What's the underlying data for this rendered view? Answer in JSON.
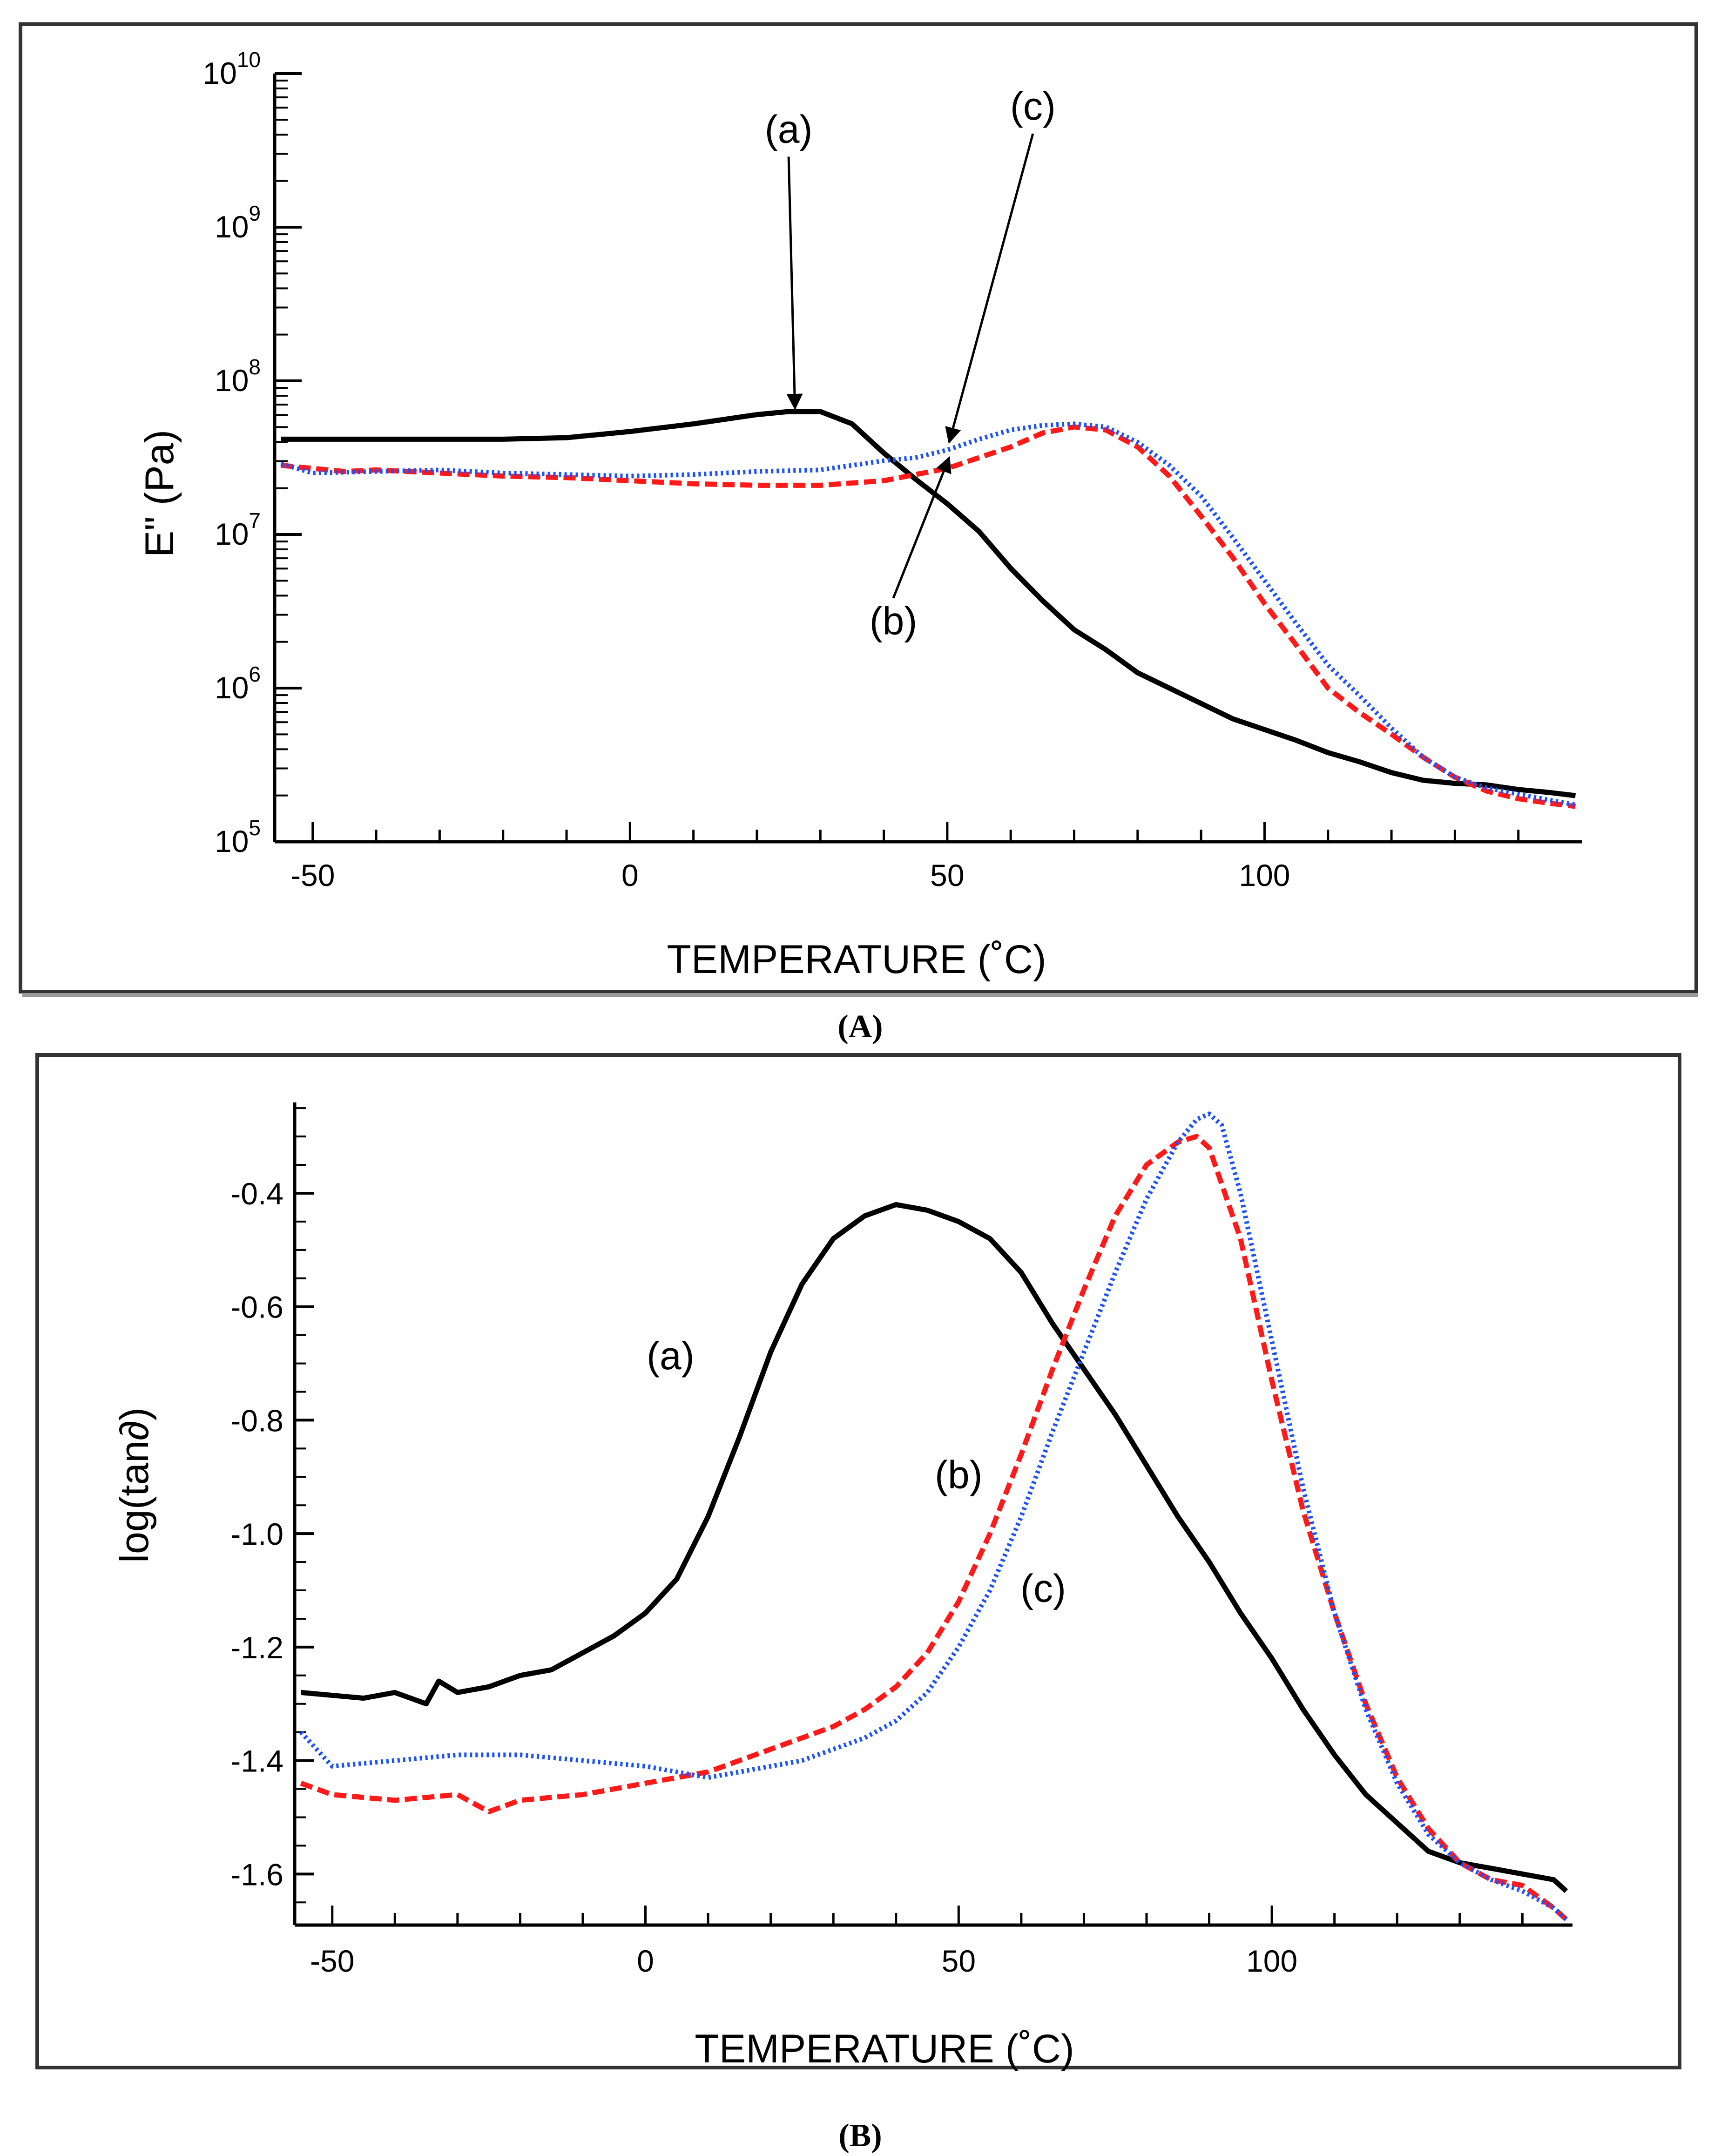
{
  "chart_data": [
    {
      "type": "line",
      "panel_label": "(A)",
      "xlabel": "TEMPERATURE (˚C)",
      "ylabel": "E\" (Pa)",
      "yscale": "log",
      "xlim": [
        -56,
        150
      ],
      "ylim_exp": [
        5,
        10
      ],
      "x_ticks": [
        "-50",
        "0",
        "50",
        "100"
      ],
      "y_ticks": [
        {
          "base": "10",
          "exp": "5",
          "value": 5
        },
        {
          "base": "10",
          "exp": "6",
          "value": 6
        },
        {
          "base": "10",
          "exp": "7",
          "value": 7
        },
        {
          "base": "10",
          "exp": "8",
          "value": 8
        },
        {
          "base": "10",
          "exp": "9",
          "value": 9
        },
        {
          "base": "10",
          "exp": "10",
          "value": 10
        }
      ],
      "series": [
        {
          "name": "(a)",
          "color": "#000000",
          "dash": "",
          "width": 11,
          "x": [
            -55,
            -40,
            -30,
            -20,
            -10,
            0,
            10,
            20,
            25,
            30,
            35,
            40,
            45,
            50,
            55,
            60,
            65,
            70,
            75,
            80,
            85,
            90,
            95,
            100,
            105,
            110,
            115,
            120,
            125,
            130,
            135,
            140,
            145,
            149
          ],
          "y": [
            7.62,
            7.62,
            7.62,
            7.62,
            7.63,
            7.67,
            7.72,
            7.78,
            7.8,
            7.8,
            7.72,
            7.53,
            7.36,
            7.2,
            7.02,
            6.78,
            6.57,
            6.38,
            6.25,
            6.1,
            6.0,
            5.9,
            5.8,
            5.73,
            5.66,
            5.58,
            5.52,
            5.45,
            5.4,
            5.38,
            5.37,
            5.34,
            5.32,
            5.3
          ]
        },
        {
          "name": "(b)",
          "color": "#ff1a1a",
          "dash": "26,12",
          "width": 11,
          "x": [
            -55,
            -45,
            -40,
            -30,
            -20,
            -10,
            0,
            10,
            20,
            30,
            40,
            50,
            55,
            60,
            65,
            70,
            75,
            80,
            85,
            90,
            95,
            100,
            105,
            110,
            115,
            120,
            125,
            130,
            135,
            140,
            145,
            149
          ],
          "y": [
            7.45,
            7.41,
            7.42,
            7.4,
            7.38,
            7.37,
            7.35,
            7.33,
            7.32,
            7.32,
            7.35,
            7.43,
            7.5,
            7.57,
            7.66,
            7.7,
            7.68,
            7.57,
            7.38,
            7.12,
            6.85,
            6.55,
            6.28,
            6.0,
            5.84,
            5.7,
            5.55,
            5.42,
            5.33,
            5.28,
            5.25,
            5.23
          ]
        },
        {
          "name": "(c)",
          "color": "#1a50ff",
          "dash": "5,7",
          "width": 10,
          "x": [
            -55,
            -50,
            -40,
            -30,
            -20,
            -10,
            0,
            10,
            20,
            30,
            40,
            45,
            50,
            55,
            60,
            65,
            70,
            75,
            80,
            85,
            90,
            95,
            100,
            105,
            110,
            115,
            120,
            125,
            130,
            135,
            140,
            145,
            149
          ],
          "y": [
            7.46,
            7.4,
            7.41,
            7.42,
            7.4,
            7.39,
            7.38,
            7.39,
            7.41,
            7.42,
            7.48,
            7.5,
            7.55,
            7.62,
            7.68,
            7.71,
            7.72,
            7.7,
            7.6,
            7.45,
            7.25,
            6.98,
            6.7,
            6.42,
            6.15,
            5.95,
            5.74,
            5.55,
            5.42,
            5.35,
            5.31,
            5.27,
            5.24
          ]
        }
      ],
      "annotations": [
        {
          "label": "(a)",
          "text_x": 25,
          "text_y": 9.55,
          "arrow_to": [
            26,
            7.82
          ],
          "align": "middle"
        },
        {
          "label": "(c)",
          "text_x": 63.5,
          "text_y": 9.7,
          "arrow_to": [
            50.3,
            7.6
          ],
          "align": "middle"
        },
        {
          "label": "(b)",
          "text_x": 41.5,
          "text_y": 6.35,
          "arrow_to": [
            50.3,
            7.5
          ],
          "align": "middle"
        }
      ]
    },
    {
      "type": "line",
      "panel_label": "(B)",
      "xlabel": "TEMPERATURE (˚C)",
      "ylabel": "log(tan∂)",
      "yscale": "linear",
      "xlim": [
        -56,
        148
      ],
      "ylim": [
        -1.69,
        -0.24
      ],
      "x_ticks": [
        "-50",
        "0",
        "50",
        "100"
      ],
      "y_ticks": [
        "-0.4",
        "-0.6",
        "-0.8",
        "-1.0",
        "-1.2",
        "-1.4",
        "-1.6"
      ],
      "y_tick_values": [
        -0.4,
        -0.6,
        -0.8,
        -1.0,
        -1.2,
        -1.4,
        -1.6
      ],
      "series": [
        {
          "name": "(a)",
          "color": "#000000",
          "dash": "",
          "width": 11,
          "x": [
            -55,
            -45,
            -40,
            -35,
            -33,
            -30,
            -25,
            -20,
            -15,
            -10,
            -5,
            0,
            5,
            10,
            15,
            20,
            25,
            30,
            35,
            40,
            45,
            50,
            55,
            60,
            65,
            70,
            75,
            80,
            85,
            90,
            95,
            100,
            105,
            110,
            115,
            120,
            125,
            130,
            135,
            140,
            145,
            147
          ],
          "y": [
            -1.28,
            -1.29,
            -1.28,
            -1.3,
            -1.26,
            -1.28,
            -1.27,
            -1.25,
            -1.24,
            -1.21,
            -1.18,
            -1.14,
            -1.08,
            -0.97,
            -0.83,
            -0.68,
            -0.56,
            -0.48,
            -0.44,
            -0.42,
            -0.43,
            -0.45,
            -0.48,
            -0.54,
            -0.63,
            -0.71,
            -0.79,
            -0.88,
            -0.97,
            -1.05,
            -1.14,
            -1.22,
            -1.31,
            -1.39,
            -1.46,
            -1.51,
            -1.56,
            -1.58,
            -1.59,
            -1.6,
            -1.61,
            -1.63
          ]
        },
        {
          "name": "(b)",
          "color": "#ff1a1a",
          "dash": "26,12",
          "width": 11,
          "x": [
            -55,
            -50,
            -40,
            -30,
            -25,
            -20,
            -10,
            0,
            5,
            10,
            15,
            20,
            25,
            30,
            35,
            40,
            45,
            50,
            55,
            60,
            65,
            70,
            75,
            80,
            85,
            88,
            90,
            95,
            100,
            105,
            110,
            115,
            120,
            125,
            130,
            135,
            140,
            145,
            147
          ],
          "y": [
            -1.44,
            -1.46,
            -1.47,
            -1.46,
            -1.49,
            -1.47,
            -1.46,
            -1.44,
            -1.43,
            -1.42,
            -1.4,
            -1.38,
            -1.36,
            -1.34,
            -1.31,
            -1.27,
            -1.21,
            -1.12,
            -1.0,
            -0.86,
            -0.71,
            -0.57,
            -0.44,
            -0.35,
            -0.31,
            -0.3,
            -0.32,
            -0.48,
            -0.73,
            -0.96,
            -1.14,
            -1.3,
            -1.43,
            -1.52,
            -1.58,
            -1.61,
            -1.62,
            -1.66,
            -1.68
          ]
        },
        {
          "name": "(c)",
          "color": "#1a50ff",
          "dash": "5,7",
          "width": 10,
          "x": [
            -55,
            -50,
            -40,
            -30,
            -25,
            -20,
            -10,
            0,
            5,
            10,
            15,
            20,
            25,
            30,
            35,
            40,
            45,
            50,
            55,
            60,
            65,
            70,
            75,
            80,
            85,
            88,
            90,
            92,
            95,
            100,
            105,
            110,
            115,
            120,
            125,
            130,
            135,
            140,
            145,
            147
          ],
          "y": [
            -1.35,
            -1.41,
            -1.4,
            -1.39,
            -1.39,
            -1.39,
            -1.4,
            -1.41,
            -1.42,
            -1.43,
            -1.42,
            -1.41,
            -1.4,
            -1.38,
            -1.36,
            -1.33,
            -1.28,
            -1.2,
            -1.1,
            -0.97,
            -0.82,
            -0.68,
            -0.54,
            -0.41,
            -0.31,
            -0.27,
            -0.26,
            -0.28,
            -0.4,
            -0.66,
            -0.92,
            -1.14,
            -1.31,
            -1.44,
            -1.53,
            -1.58,
            -1.61,
            -1.63,
            -1.66,
            -1.68
          ]
        }
      ],
      "annotations": [
        {
          "label": "(a)",
          "text_x": 4,
          "text_y": -0.71,
          "align": "middle"
        },
        {
          "label": "(b)",
          "text_x": 50,
          "text_y": -0.92,
          "align": "middle"
        },
        {
          "label": "(c)",
          "text_x": 63.5,
          "text_y": -1.12,
          "align": "middle"
        }
      ]
    }
  ]
}
